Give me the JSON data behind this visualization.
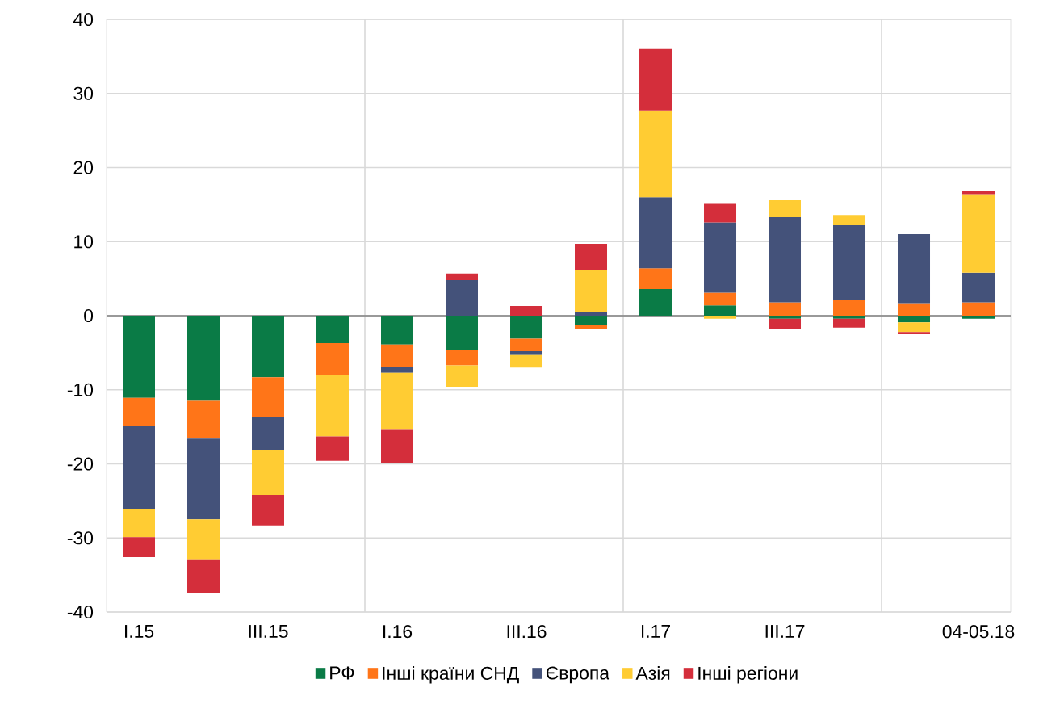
{
  "chart_data": {
    "type": "bar",
    "stacked": true,
    "categories": [
      "I.15",
      null,
      "III.15",
      null,
      "I.16",
      null,
      "III.16",
      null,
      "I.17",
      null,
      "III.17",
      null,
      null,
      "04-05.18"
    ],
    "series": [
      {
        "name": "РФ",
        "color": "#0a7b46",
        "values": [
          -11.1,
          -11.5,
          -8.3,
          -3.7,
          -3.9,
          -4.6,
          -3.1,
          -1.3,
          3.6,
          1.4,
          -0.4,
          -0.4,
          -0.9,
          -0.4
        ]
      },
      {
        "name": "Інші країни СНД",
        "color": "#ff7518",
        "values": [
          -3.8,
          -5.1,
          -5.4,
          -4.3,
          -3.0,
          -2.1,
          -1.7,
          -0.5,
          2.8,
          1.7,
          1.8,
          2.1,
          1.7,
          1.8
        ]
      },
      {
        "name": "Європа",
        "color": "#44527a",
        "values": [
          -11.2,
          -10.9,
          -4.4,
          null,
          -0.8,
          4.8,
          -0.5,
          0.5,
          9.6,
          9.5,
          11.5,
          10.1,
          9.3,
          4.0
        ]
      },
      {
        "name": "Азія",
        "color": "#ffcc33",
        "values": [
          -3.8,
          -5.4,
          -6.1,
          -8.3,
          -7.6,
          -2.9,
          -1.7,
          5.6,
          11.7,
          -0.4,
          2.3,
          1.4,
          -1.3,
          10.6
        ]
      },
      {
        "name": "Інші регіони",
        "color": "#d42e3b",
        "values": [
          -2.7,
          -4.5,
          -4.1,
          -3.3,
          -4.6,
          0.9,
          1.3,
          3.6,
          8.3,
          2.5,
          -1.4,
          -1.2,
          -0.3,
          0.4
        ]
      }
    ],
    "ylim": [
      -40,
      40
    ],
    "yticks": [
      -40,
      -30,
      -20,
      -10,
      0,
      10,
      20,
      30,
      40
    ],
    "grid": true,
    "legend": "bottom"
  }
}
